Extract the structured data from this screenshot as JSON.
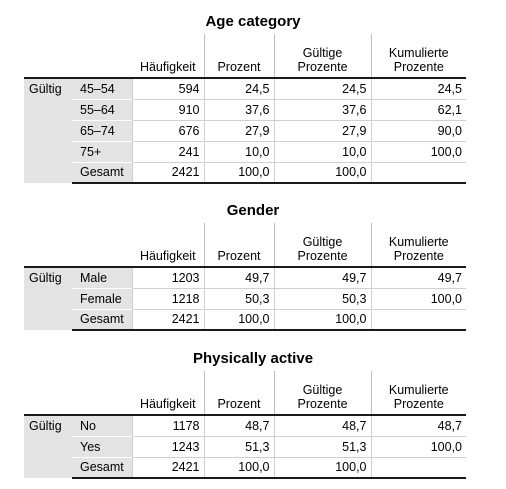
{
  "headers": {
    "freq": "Häufigkeit",
    "pct": "Prozent",
    "valid_pct_1": "Gültige",
    "valid_pct_2": "Prozente",
    "cum_pct_1": "Kumulierte",
    "cum_pct_2": "Prozente"
  },
  "tables": [
    {
      "title": "Age category",
      "group": "Gültig",
      "rows": [
        {
          "label": "45–54",
          "freq": "594",
          "pct": "24,5",
          "valid": "24,5",
          "cum": "24,5"
        },
        {
          "label": "55–64",
          "freq": "910",
          "pct": "37,6",
          "valid": "37,6",
          "cum": "62,1"
        },
        {
          "label": "65–74",
          "freq": "676",
          "pct": "27,9",
          "valid": "27,9",
          "cum": "90,0"
        },
        {
          "label": "75+",
          "freq": "241",
          "pct": "10,0",
          "valid": "10,0",
          "cum": "100,0"
        },
        {
          "label": "Gesamt",
          "freq": "2421",
          "pct": "100,0",
          "valid": "100,0",
          "cum": ""
        }
      ]
    },
    {
      "title": "Gender",
      "group": "Gültig",
      "rows": [
        {
          "label": "Male",
          "freq": "1203",
          "pct": "49,7",
          "valid": "49,7",
          "cum": "49,7"
        },
        {
          "label": "Female",
          "freq": "1218",
          "pct": "50,3",
          "valid": "50,3",
          "cum": "100,0"
        },
        {
          "label": "Gesamt",
          "freq": "2421",
          "pct": "100,0",
          "valid": "100,0",
          "cum": ""
        }
      ]
    },
    {
      "title": "Physically active",
      "group": "Gültig",
      "rows": [
        {
          "label": "No",
          "freq": "1178",
          "pct": "48,7",
          "valid": "48,7",
          "cum": "48,7"
        },
        {
          "label": "Yes",
          "freq": "1243",
          "pct": "51,3",
          "valid": "51,3",
          "cum": "100,0"
        },
        {
          "label": "Gesamt",
          "freq": "2421",
          "pct": "100,0",
          "valid": "100,0",
          "cum": ""
        }
      ]
    }
  ]
}
